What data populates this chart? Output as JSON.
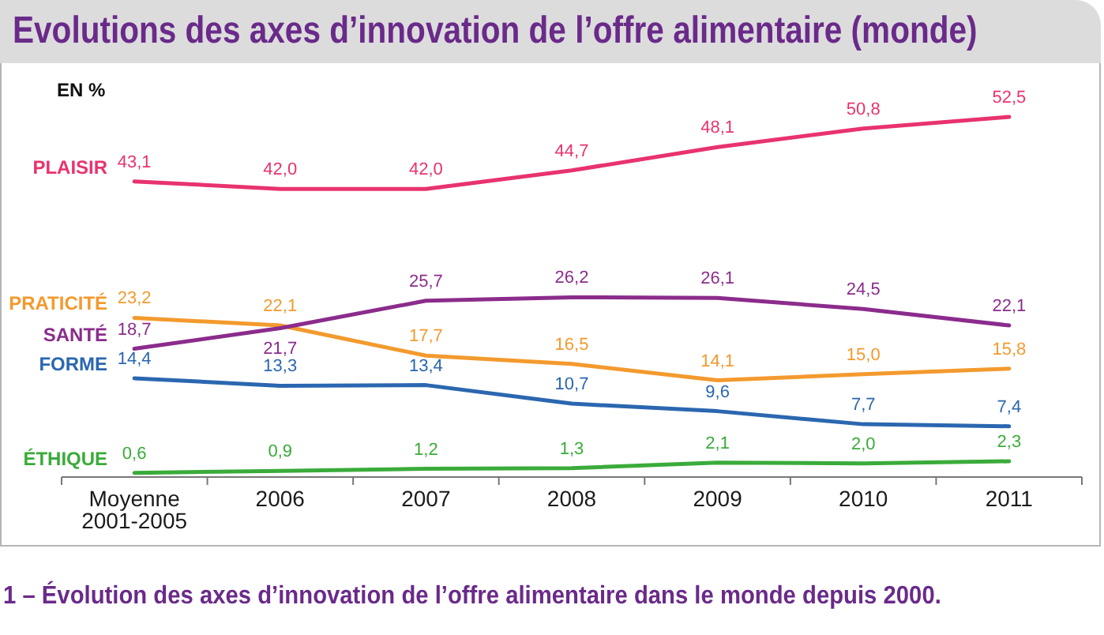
{
  "chart_data": {
    "type": "line",
    "title": "Evolutions des axes d’innovation de l’offre alimentaire (monde)",
    "ylabel": "EN %",
    "annotations": [
      "1 – Évolution des axes d’innovation de l’offre alimentaire dans le monde depuis 2000."
    ],
    "categories": [
      "Moyenne 2001-2005",
      "2006",
      "2007",
      "2008",
      "2009",
      "2010",
      "2011"
    ],
    "series": [
      {
        "name": "PLAISIR",
        "color": "#e8336e",
        "values": [
          43.1,
          42.0,
          42.0,
          44.7,
          48.1,
          50.8,
          52.5
        ],
        "value_labels": [
          "43,1",
          "42,0",
          "42,0",
          "44,7",
          "48,1",
          "50,8",
          "52,5"
        ]
      },
      {
        "name": "PRATICITÉ",
        "color": "#f39a2e",
        "values": [
          23.2,
          22.1,
          17.7,
          16.5,
          14.1,
          15.0,
          15.8
        ],
        "value_labels": [
          "23,2",
          "22,1",
          "17,7",
          "16,5",
          "14,1",
          "15,0",
          "15,8"
        ]
      },
      {
        "name": "SANTÉ",
        "color": "#8b2c8c",
        "values": [
          18.7,
          21.7,
          25.7,
          26.2,
          26.1,
          24.5,
          22.1
        ],
        "value_labels": [
          "18,7",
          "21,7",
          "25,7",
          "26,2",
          "26,1",
          "24,5",
          "22,1"
        ]
      },
      {
        "name": "FORME",
        "color": "#2b67b0",
        "values": [
          14.4,
          13.3,
          13.4,
          10.7,
          9.6,
          7.7,
          7.4
        ],
        "value_labels": [
          "14,4",
          "13,3",
          "13,4",
          "10,7",
          "9,6",
          "7,7",
          "7,4"
        ]
      },
      {
        "name": "ÉTHIQUE",
        "color": "#3aab3a",
        "values": [
          0.6,
          0.9,
          1.2,
          1.3,
          2.1,
          2.0,
          2.3
        ],
        "value_labels": [
          "0,6",
          "0,9",
          "1,2",
          "1,3",
          "2,1",
          "2,0",
          "2,3"
        ]
      }
    ],
    "marker": "none",
    "line_style": "solid"
  }
}
